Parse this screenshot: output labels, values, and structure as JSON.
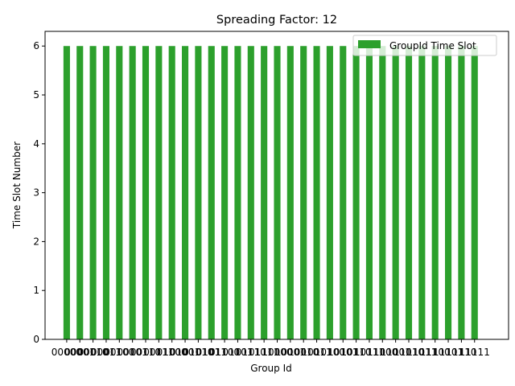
{
  "chart_data": {
    "type": "bar",
    "title": "Spreading Factor: 12",
    "xlabel": "Group Id",
    "ylabel": "Time Slot Number",
    "ylim": [
      0,
      6.3
    ],
    "yticks": [
      0,
      1,
      2,
      3,
      4,
      5,
      6
    ],
    "grid": false,
    "legend_position": "top-right",
    "colors": {
      "bar": "#2ca02c"
    },
    "categories": [
      "00000",
      "00001",
      "00010",
      "00011",
      "00100",
      "00101",
      "00110",
      "00111",
      "01000",
      "01001",
      "01010",
      "01011",
      "01100",
      "01101",
      "01110",
      "01111",
      "10000",
      "10001",
      "10010",
      "10011",
      "10100",
      "10101",
      "10110",
      "10111",
      "11000",
      "11001",
      "11010",
      "11011",
      "11100",
      "11101",
      "11110",
      "11111"
    ],
    "series": [
      {
        "name": "GroupId Time Slot",
        "values": [
          6,
          6,
          6,
          6,
          6,
          6,
          6,
          6,
          6,
          6,
          6,
          6,
          6,
          6,
          6,
          6,
          6,
          6,
          6,
          6,
          6,
          6,
          6,
          6,
          6,
          6,
          6,
          6,
          6,
          6,
          6,
          6
        ]
      }
    ]
  }
}
